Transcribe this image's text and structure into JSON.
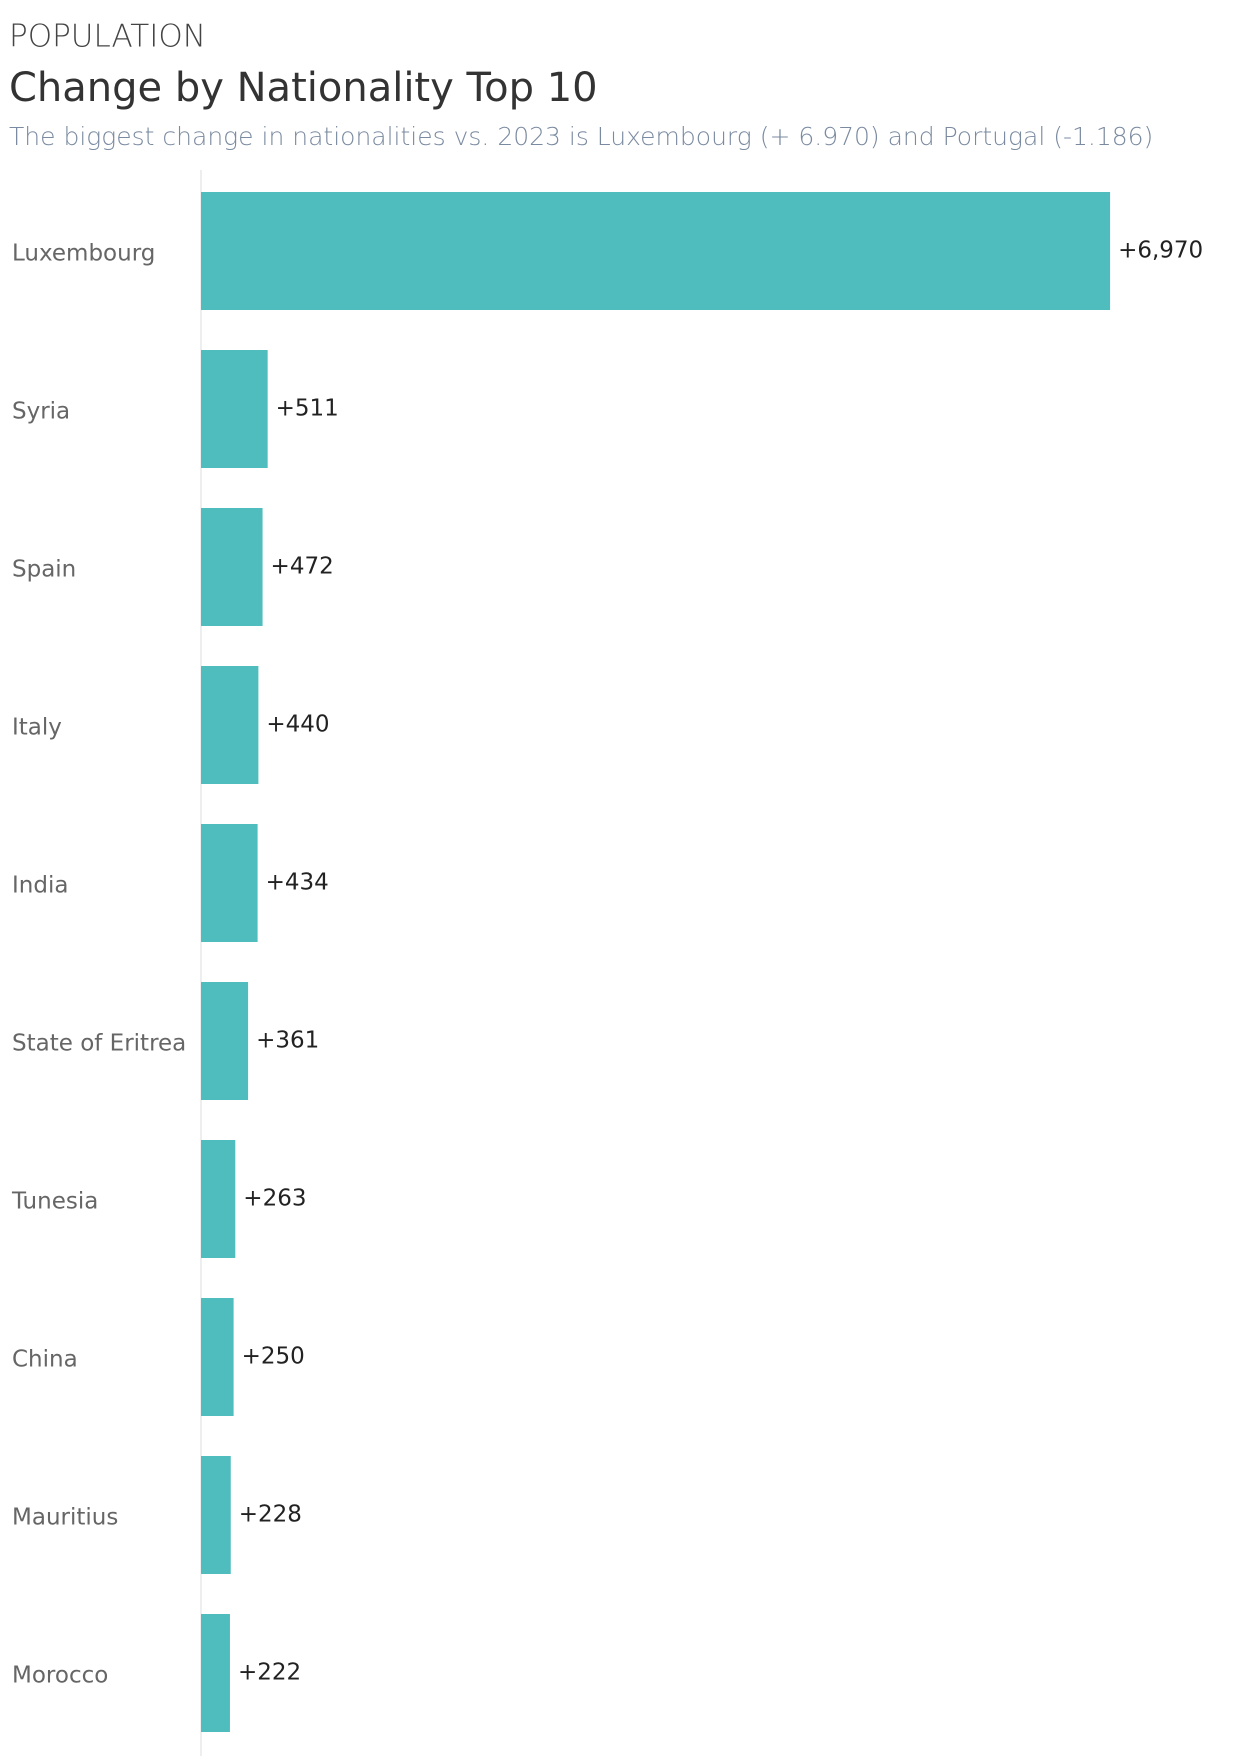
{
  "chart_data": {
    "type": "hbar",
    "supertitle": "POPULATION",
    "title": "Change by Nationality Top 10",
    "subtitle": "The biggest change in nationalities vs. 2023 is Luxembourg (+ 6.970) and Portugal (-1.186)",
    "categories": [
      "Luxembourg",
      "Syria",
      "Spain",
      "Italy",
      "India",
      "State of Eritrea",
      "Tunesia",
      "China",
      "Mauritius",
      "Morocco"
    ],
    "values": [
      6970,
      511,
      472,
      440,
      434,
      361,
      263,
      250,
      228,
      222
    ],
    "value_labels": [
      "+6,970",
      "+511",
      "+472",
      "+440",
      "+434",
      "+361",
      "+263",
      "+250",
      "+228",
      "+222"
    ],
    "color": "#4fbdbd",
    "xlim": [
      0,
      7000
    ]
  }
}
